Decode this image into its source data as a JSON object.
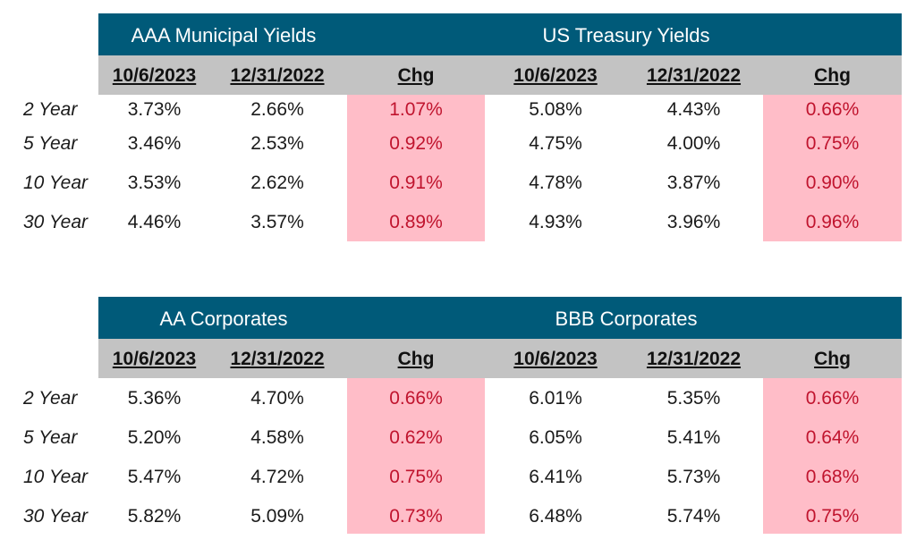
{
  "colors": {
    "header_band": "#005a79",
    "subheader": "#c3c3c3",
    "chg_highlight": "#ffbdc8",
    "chg_text": "#c0142e"
  },
  "tables": [
    {
      "left_title": "AAA Municipal Yields",
      "right_title": "US Treasury Yields",
      "columns": [
        "10/6/2023",
        "12/31/2022",
        "Chg",
        "10/6/2023",
        "12/31/2022",
        "Chg"
      ],
      "rows": [
        {
          "label": "2 Year",
          "values": [
            "3.73%",
            "2.66%",
            "1.07%",
            "5.08%",
            "4.43%",
            "0.66%"
          ]
        },
        {
          "label": "5 Year",
          "values": [
            "3.46%",
            "2.53%",
            "0.92%",
            "4.75%",
            "4.00%",
            "0.75%"
          ]
        },
        {
          "label": "10 Year",
          "values": [
            "3.53%",
            "2.62%",
            "0.91%",
            "4.78%",
            "3.87%",
            "0.90%"
          ]
        },
        {
          "label": "30 Year",
          "values": [
            "4.46%",
            "3.57%",
            "0.89%",
            "4.93%",
            "3.96%",
            "0.96%"
          ]
        }
      ]
    },
    {
      "left_title": "AA Corporates",
      "right_title": "BBB Corporates",
      "columns": [
        "10/6/2023",
        "12/31/2022",
        "Chg",
        "10/6/2023",
        "12/31/2022",
        "Chg"
      ],
      "rows": [
        {
          "label": "2 Year",
          "values": [
            "5.36%",
            "4.70%",
            "0.66%",
            "6.01%",
            "5.35%",
            "0.66%"
          ]
        },
        {
          "label": "5 Year",
          "values": [
            "5.20%",
            "4.58%",
            "0.62%",
            "6.05%",
            "5.41%",
            "0.64%"
          ]
        },
        {
          "label": "10 Year",
          "values": [
            "5.47%",
            "4.72%",
            "0.75%",
            "6.41%",
            "5.73%",
            "0.68%"
          ]
        },
        {
          "label": "30 Year",
          "values": [
            "5.82%",
            "5.09%",
            "0.73%",
            "6.48%",
            "5.74%",
            "0.75%"
          ]
        }
      ]
    }
  ]
}
